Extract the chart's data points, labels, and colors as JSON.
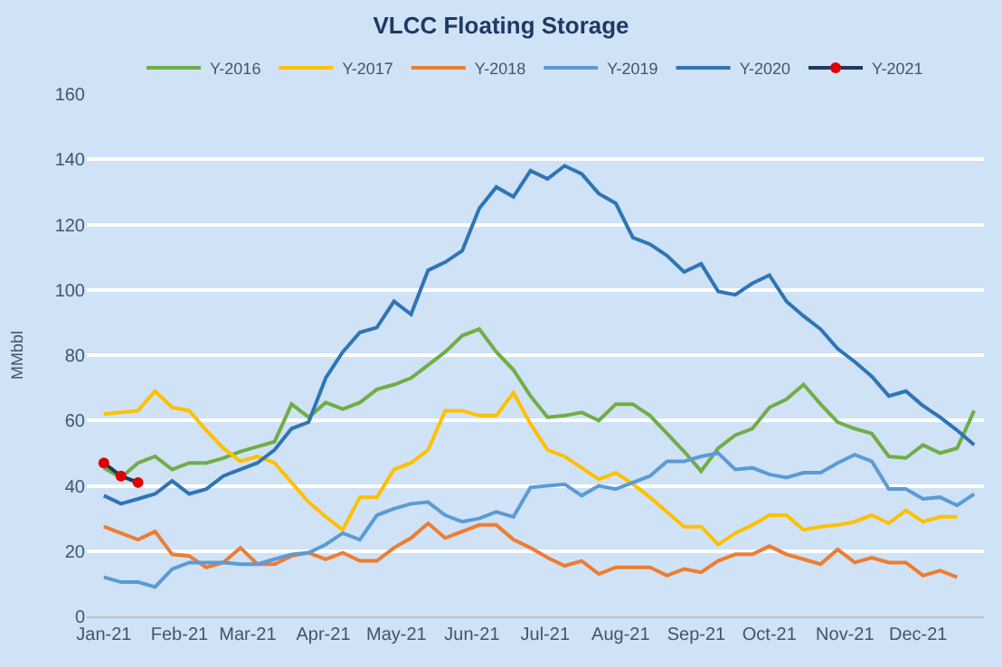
{
  "chart_data": {
    "type": "line",
    "title": "VLCC Floating Storage",
    "ylabel": "MMbbl",
    "x": [
      "2021-01-01",
      "2021-01-08",
      "2021-01-15",
      "2021-01-22",
      "2021-01-29",
      "2021-02-05",
      "2021-02-12",
      "2021-02-19",
      "2021-02-26",
      "2021-03-05",
      "2021-03-12",
      "2021-03-19",
      "2021-03-26",
      "2021-04-02",
      "2021-04-09",
      "2021-04-16",
      "2021-04-23",
      "2021-04-30",
      "2021-05-07",
      "2021-05-14",
      "2021-05-21",
      "2021-05-28",
      "2021-06-04",
      "2021-06-11",
      "2021-06-18",
      "2021-06-25",
      "2021-07-02",
      "2021-07-09",
      "2021-07-16",
      "2021-07-23",
      "2021-07-30",
      "2021-08-06",
      "2021-08-13",
      "2021-08-20",
      "2021-08-27",
      "2021-09-03",
      "2021-09-10",
      "2021-09-17",
      "2021-09-24",
      "2021-10-01",
      "2021-10-08",
      "2021-10-15",
      "2021-10-22",
      "2021-10-29",
      "2021-11-05",
      "2021-11-12",
      "2021-11-19",
      "2021-11-26",
      "2021-12-03",
      "2021-12-10",
      "2021-12-17",
      "2021-12-24"
    ],
    "series": [
      {
        "name": "Y-2016",
        "color": "#70ad47",
        "values": [
          45.5,
          42.5,
          47,
          49,
          45,
          47,
          47,
          48.5,
          50.5,
          52,
          53.5,
          65,
          61,
          65.5,
          63.5,
          65.5,
          69.5,
          71,
          73,
          77,
          81,
          86,
          88,
          81,
          75.5,
          67.5,
          61,
          61.5,
          62.5,
          60,
          65,
          65,
          61.5,
          56,
          50.5,
          44.5,
          51.5,
          55.5,
          57.5,
          64,
          66.5,
          71,
          65,
          59.5,
          57.5,
          56,
          49,
          48.5,
          52.5,
          50,
          51.5,
          63
        ]
      },
      {
        "name": "Y-2017",
        "color": "#ffc000",
        "values": [
          62,
          62.5,
          63,
          69,
          64,
          63,
          57,
          51.5,
          47.5,
          49,
          47,
          41,
          35,
          30.5,
          26.5,
          36.5,
          36.5,
          45,
          47,
          51,
          63,
          63,
          61.5,
          61.5,
          68.5,
          59,
          51,
          49,
          45.5,
          42,
          44,
          40.5,
          36.5,
          32,
          27.5,
          27.5,
          22,
          25.5,
          28,
          31,
          31,
          26.5,
          27.5,
          28,
          29,
          31,
          28.5,
          32.5,
          29,
          30.5,
          30.5,
          null
        ]
      },
      {
        "name": "Y-2018",
        "color": "#ed7d31",
        "values": [
          27.5,
          25.5,
          23.5,
          26,
          19,
          18.5,
          15,
          16.5,
          21,
          16,
          16,
          18.5,
          19.5,
          17.5,
          19.5,
          17,
          17,
          21,
          24,
          28.5,
          24,
          26,
          28,
          28,
          23.5,
          21,
          18,
          15.5,
          17,
          13,
          15,
          15,
          15,
          12.5,
          14.5,
          13.5,
          17,
          19,
          19,
          21.5,
          19,
          17.5,
          16,
          20.5,
          16.5,
          18,
          16.5,
          16.5,
          12.5,
          14,
          12,
          null
        ]
      },
      {
        "name": "Y-2019",
        "color": "#5b9bd5",
        "values": [
          12,
          10.5,
          10.5,
          9,
          14.5,
          16.5,
          16.5,
          16.5,
          16,
          16,
          17.5,
          19,
          19.5,
          22,
          25.5,
          23.5,
          31,
          33,
          34.5,
          35,
          31,
          29,
          30,
          32,
          30.5,
          39.5,
          40,
          40.5,
          37,
          40,
          39,
          41,
          43,
          47.5,
          47.5,
          49,
          50,
          45,
          45.5,
          43.5,
          42.5,
          44,
          44,
          47,
          49.5,
          47.5,
          39,
          39,
          36,
          36.5,
          34,
          37.5
        ]
      },
      {
        "name": "Y-2020",
        "color": "#2e75b6",
        "values": [
          37,
          34.5,
          36,
          37.5,
          41.5,
          37.5,
          39,
          43,
          45,
          47,
          51,
          57.5,
          59.5,
          73,
          81,
          87,
          88.5,
          96.5,
          92.5,
          106,
          108.5,
          112,
          125,
          131.5,
          128.5,
          136.5,
          134,
          138,
          135.5,
          129.5,
          126.5,
          116,
          114,
          110.5,
          105.5,
          108,
          99.5,
          98.5,
          102,
          104.5,
          96.5,
          92,
          88,
          82,
          78,
          73.5,
          67.5,
          69,
          64.5,
          61,
          57,
          52.5
        ]
      },
      {
        "name": "Y-2021",
        "color": "#1f3864",
        "marker": "circle",
        "x": [
          "2021-01-01",
          "2021-01-08",
          "2021-01-15"
        ],
        "colors": [
          "#e00000",
          "#e00000",
          "#e00000"
        ],
        "values": [
          47,
          43,
          41
        ]
      }
    ],
    "xlim": [
      "2020-12-25",
      "2021-12-28"
    ],
    "xticks": [
      {
        "value": "2021-01-01",
        "label": "Jan-21"
      },
      {
        "value": "2021-02-01",
        "label": "Feb-21"
      },
      {
        "value": "2021-03-01",
        "label": "Mar-21"
      },
      {
        "value": "2021-04-01",
        "label": "Apr-21"
      },
      {
        "value": "2021-05-01",
        "label": "May-21"
      },
      {
        "value": "2021-06-01",
        "label": "Jun-21"
      },
      {
        "value": "2021-07-01",
        "label": "Jul-21"
      },
      {
        "value": "2021-08-01",
        "label": "Aug-21"
      },
      {
        "value": "2021-09-01",
        "label": "Sep-21"
      },
      {
        "value": "2021-10-01",
        "label": "Oct-21"
      },
      {
        "value": "2021-11-01",
        "label": "Nov-21"
      },
      {
        "value": "2021-12-01",
        "label": "Dec-21"
      }
    ],
    "ylim": [
      0,
      160
    ],
    "yticks": [
      0,
      20,
      40,
      60,
      80,
      100,
      120,
      140,
      160
    ],
    "grid": "y",
    "legend": "top",
    "marker": "none",
    "line_style": "solid"
  }
}
